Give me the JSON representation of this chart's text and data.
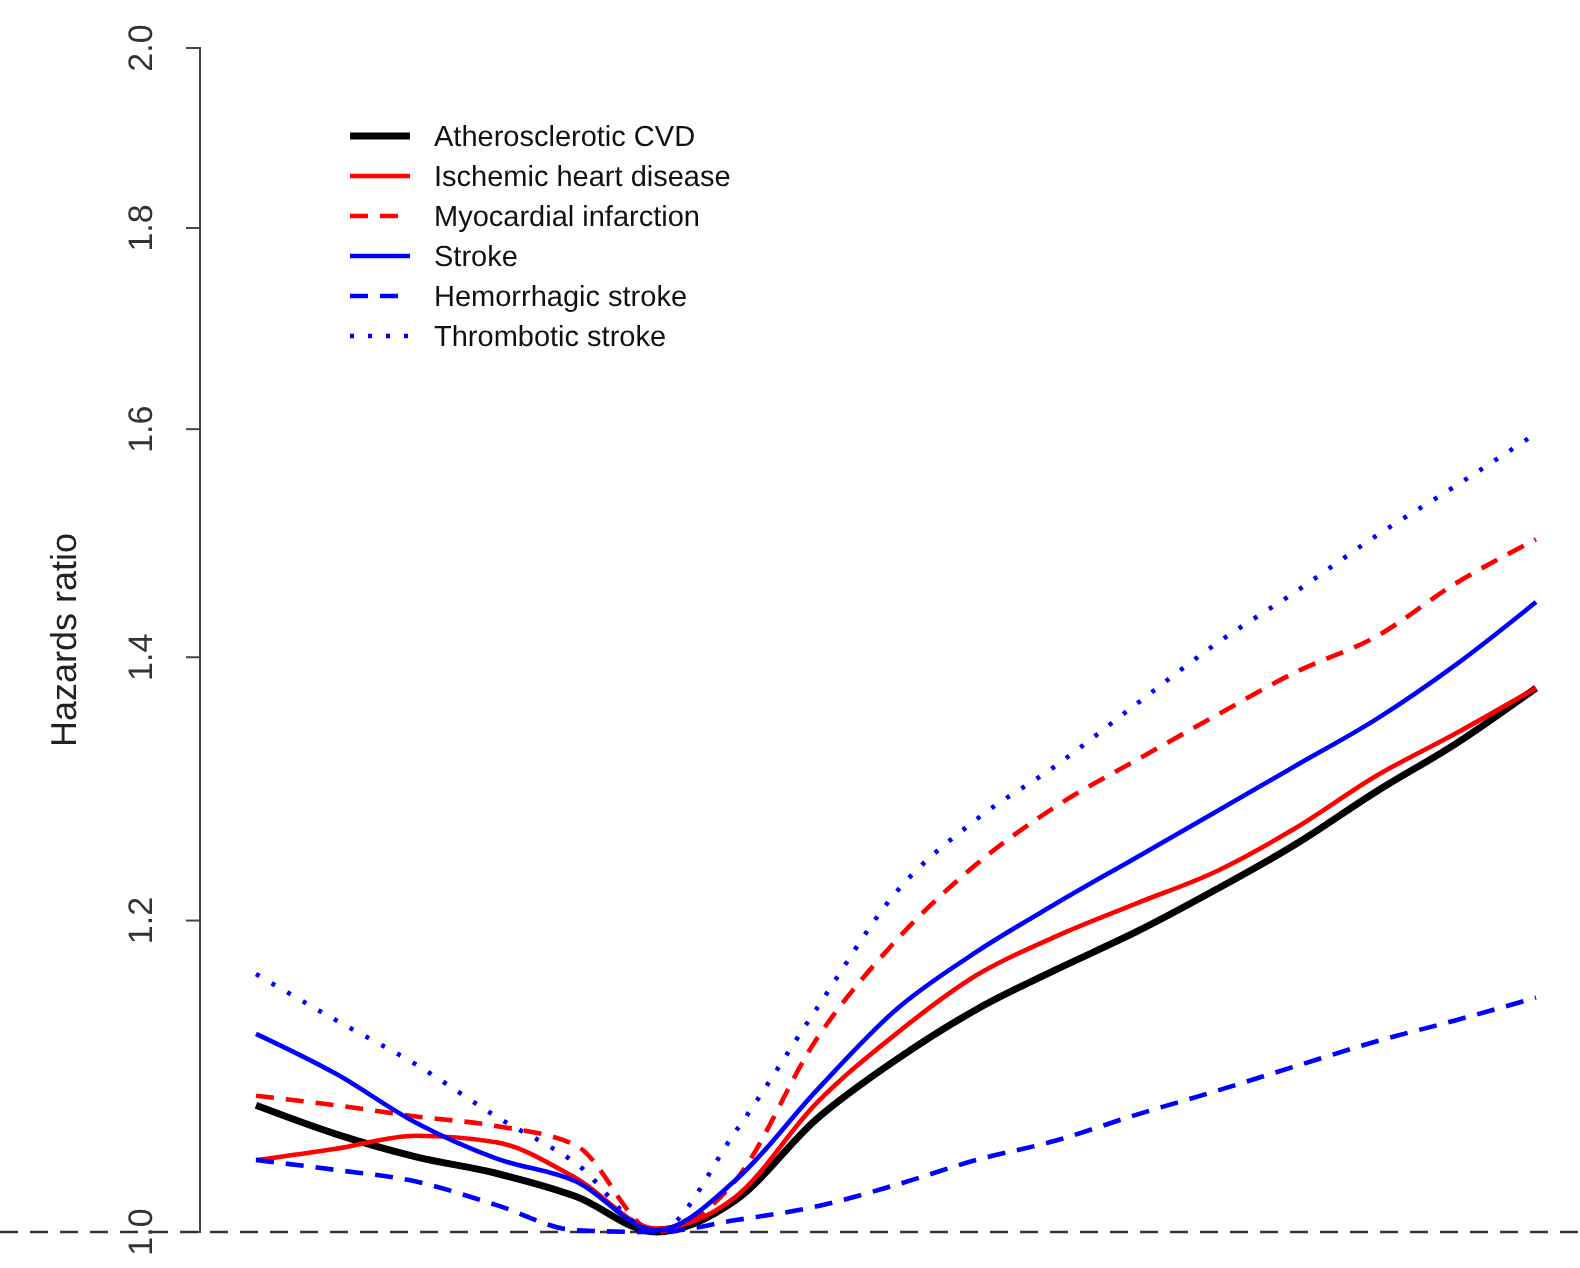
{
  "chart_data": {
    "type": "line",
    "ylabel": "Hazards ratio",
    "log": "y",
    "ylim": [
      1,
      2
    ],
    "yticks": [
      {
        "value": 1,
        "label": "1.0"
      },
      1.2,
      1.4,
      1.6,
      1.8,
      {
        "value": 2,
        "label": "2.0"
      }
    ],
    "tick_labels": "y",
    "legend": "top left",
    "grid": false,
    "categories": [
      null,
      null,
      null,
      null,
      null,
      null,
      null,
      null,
      null,
      null,
      null,
      null,
      null,
      null,
      null,
      null,
      null
    ],
    "ref_lines": [
      {
        "axis": "y",
        "value": 1,
        "color": "#333333",
        "line_style": "dashed"
      }
    ],
    "series": [
      {
        "name": "Atherosclerotic CVD",
        "color": "#000000",
        "line_style": "solid",
        "values": [
          1.077,
          1.059,
          1.045,
          1.035,
          1.021,
          1.0,
          1.019,
          1.068,
          1.106,
          1.139,
          1.166,
          1.192,
          1.222,
          1.255,
          1.294,
          1.331,
          1.375
        ]
      },
      {
        "name": "Ischemic heart disease",
        "color": "#ff0000",
        "line_style": "solid",
        "values": [
          1.043,
          1.05,
          1.058,
          1.054,
          1.032,
          1.002,
          1.021,
          1.078,
          1.123,
          1.162,
          1.189,
          1.212,
          1.235,
          1.267,
          1.306,
          1.339,
          1.375
        ]
      },
      {
        "name": "Myocardial infarction",
        "color": "#ff0000",
        "line_style": "dashed",
        "values": [
          1.083,
          1.077,
          1.07,
          1.064,
          1.052,
          1.0,
          1.031,
          1.119,
          1.186,
          1.24,
          1.283,
          1.318,
          1.353,
          1.388,
          1.417,
          1.462,
          1.5
        ]
      },
      {
        "name": "Stroke",
        "color": "#0000ff",
        "line_style": "solid",
        "values": [
          1.123,
          1.097,
          1.066,
          1.044,
          1.03,
          1.001,
          1.031,
          1.086,
          1.139,
          1.178,
          1.212,
          1.245,
          1.279,
          1.314,
          1.35,
          1.394,
          1.446
        ]
      },
      {
        "name": "Hemorrhagic stroke",
        "color": "#0000ff",
        "line_style": "dashed",
        "values": [
          1.043,
          1.037,
          1.03,
          1.016,
          1.001,
          1.0,
          1.007,
          1.015,
          1.028,
          1.043,
          1.055,
          1.071,
          1.086,
          1.102,
          1.118,
          1.132,
          1.147
        ]
      },
      {
        "name": "Thrombotic stroke",
        "color": "#0000ff",
        "line_style": "dotted",
        "values": [
          1.163,
          1.132,
          1.103,
          1.07,
          1.041,
          1.0,
          1.061,
          1.139,
          1.22,
          1.273,
          1.314,
          1.362,
          1.411,
          1.455,
          1.503,
          1.548,
          1.596
        ]
      }
    ]
  }
}
